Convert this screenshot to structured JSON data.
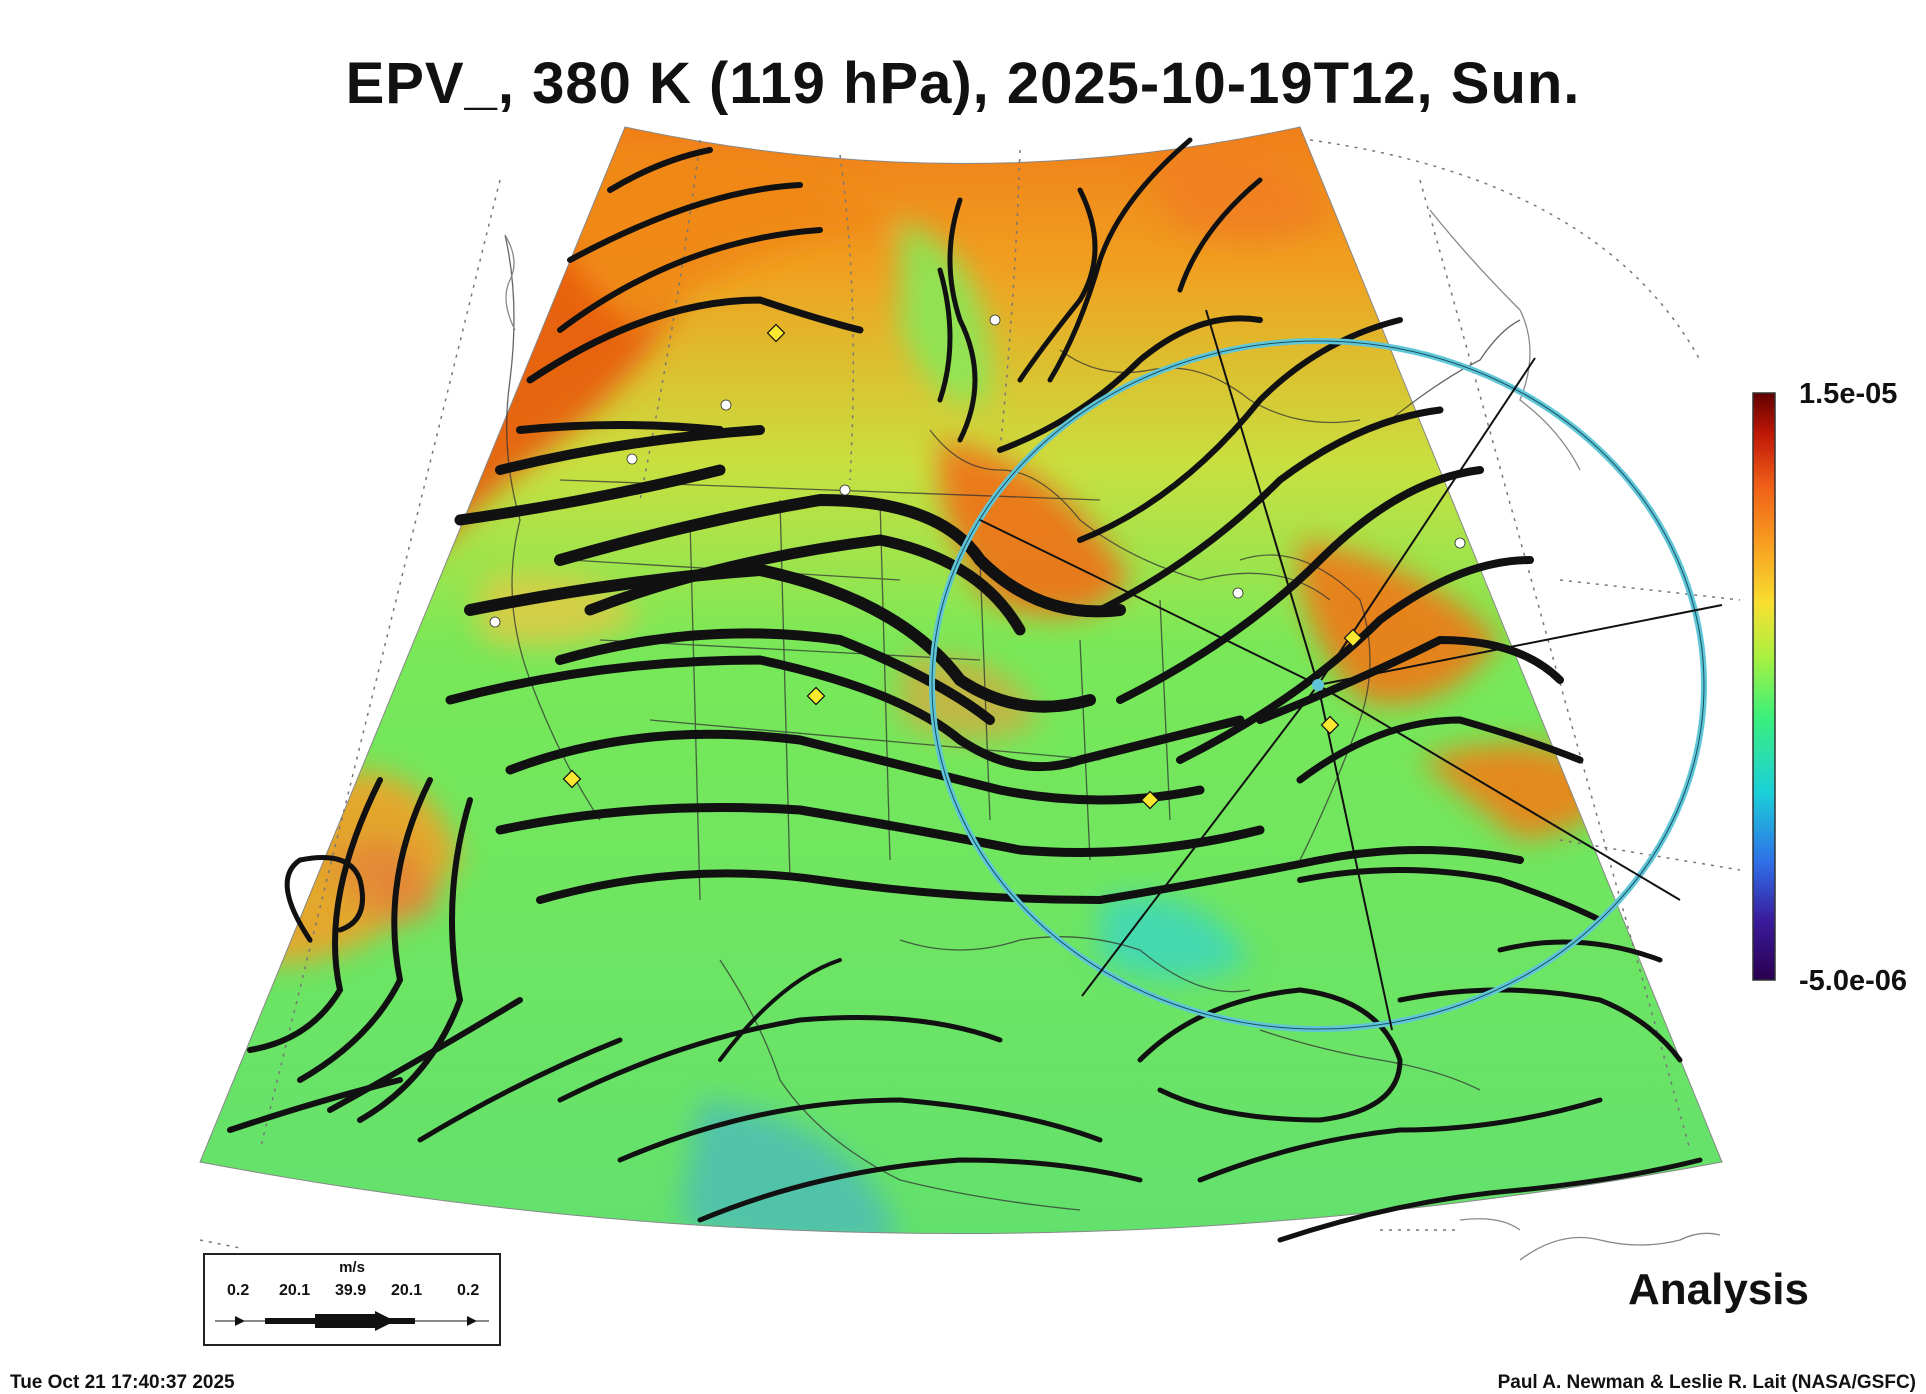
{
  "title": "EPV_, 380 K (119 hPa), 2025-10-19T12, Sun.",
  "colorbar": {
    "max_label": "1.5e-05",
    "min_label": "-5.0e-06",
    "stops": [
      "#2a0050",
      "#3a1a9a",
      "#2f6fe8",
      "#1ad0d8",
      "#3cf07a",
      "#a8f040",
      "#f8e030",
      "#f8a020",
      "#f06018",
      "#c01808",
      "#600000"
    ]
  },
  "analysis_label": "Analysis",
  "footer": {
    "timestamp": "Tue Oct 21 17:40:37 2025",
    "credit": "Paul A. Newman & Leslie R. Lait (NASA/GSFC)"
  },
  "wind_legend": {
    "unit": "m/s",
    "labels": [
      "0.2",
      "20.1",
      "39.9",
      "20.1",
      "0.2"
    ]
  },
  "colors": {
    "streamline": "#111111",
    "circle": "#5fc6d8",
    "marker_diamond": "#f8e830",
    "marker_star": "#ffffff"
  }
}
